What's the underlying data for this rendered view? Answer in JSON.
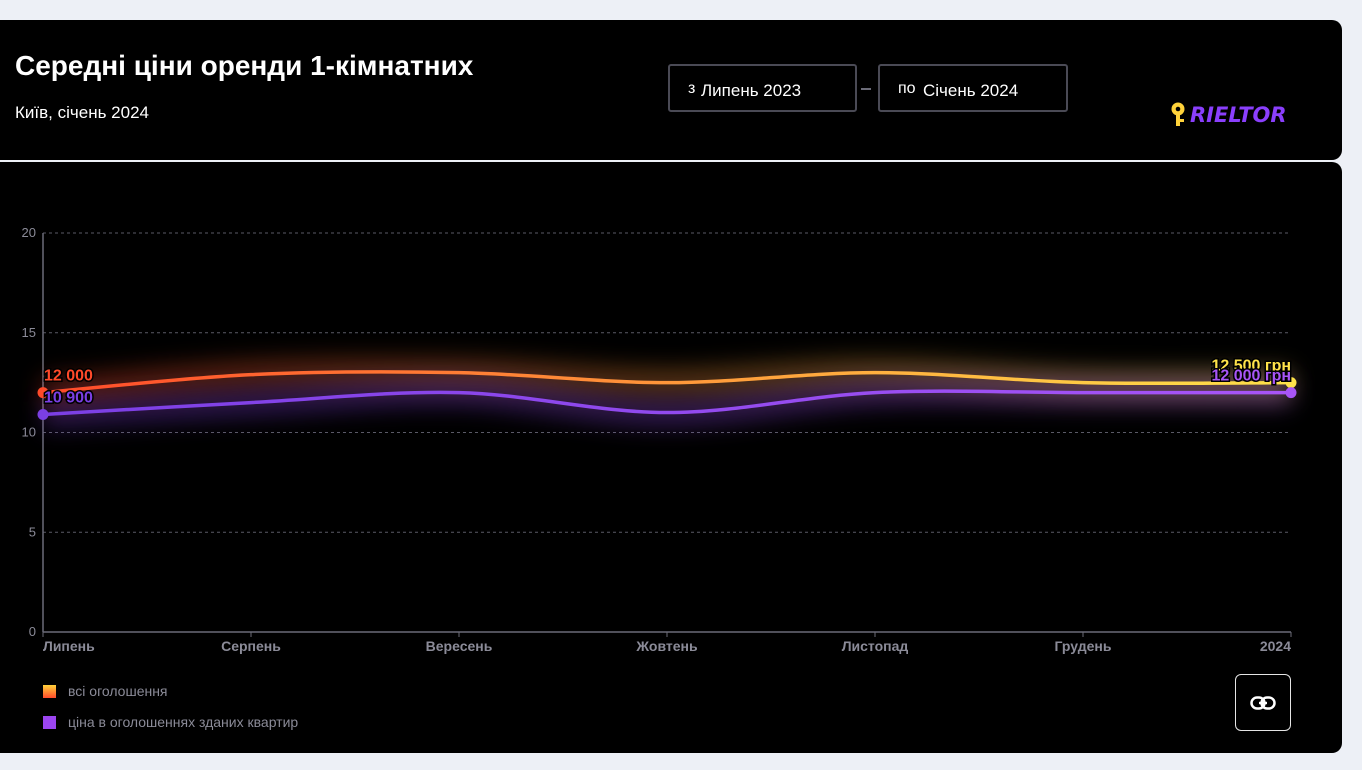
{
  "header": {
    "title": "Середні ціни оренди 1-кімнатних",
    "subtitle": "Київ, січень 2024",
    "date_from_prefix": "з",
    "date_from_value": "Липень 2023",
    "date_to_prefix": "по",
    "date_to_value": "Січень 2024",
    "logo_text": "RIELTOR"
  },
  "chart_data": {
    "type": "line",
    "categories": [
      "Липень",
      "Серпень",
      "Вересень",
      "Жовтень",
      "Листопад",
      "Грудень",
      "2024"
    ],
    "x_tick_labels": [
      "Липень",
      "Серпень",
      "Вересень",
      "Жовтень",
      "Листопад",
      "Грудень",
      "2024"
    ],
    "y_ticks": [
      0,
      5,
      10,
      15,
      20
    ],
    "ylim": [
      0,
      20
    ],
    "grid": true,
    "legend_placement": "bottom-left",
    "series": [
      {
        "name": "всі оголошення",
        "values": [
          12,
          12.9,
          13,
          12.5,
          13,
          12.5,
          12.5
        ],
        "color_start": "#ff4a2a",
        "color_end": "#ffe34a",
        "start_label": "12 000",
        "end_label": "12 500 грн"
      },
      {
        "name": "ціна в оголошеннях зданих квартир",
        "values": [
          10.9,
          11.5,
          12,
          11,
          12,
          12,
          12
        ],
        "color_start": "#7b3fe4",
        "color_end": "#a855f7",
        "start_label": "10 900",
        "end_label": "12 000 грн"
      }
    ]
  },
  "legend": {
    "items": [
      {
        "label": "всі оголошення"
      },
      {
        "label": "ціна в оголошеннях зданих квартир"
      }
    ]
  },
  "actions": {
    "link_icon": "link-icon"
  },
  "colors": {
    "background": "#000000",
    "page_background": "#edf0f6",
    "axis_text": "#8b8b98",
    "grid": "#5a5a66"
  }
}
